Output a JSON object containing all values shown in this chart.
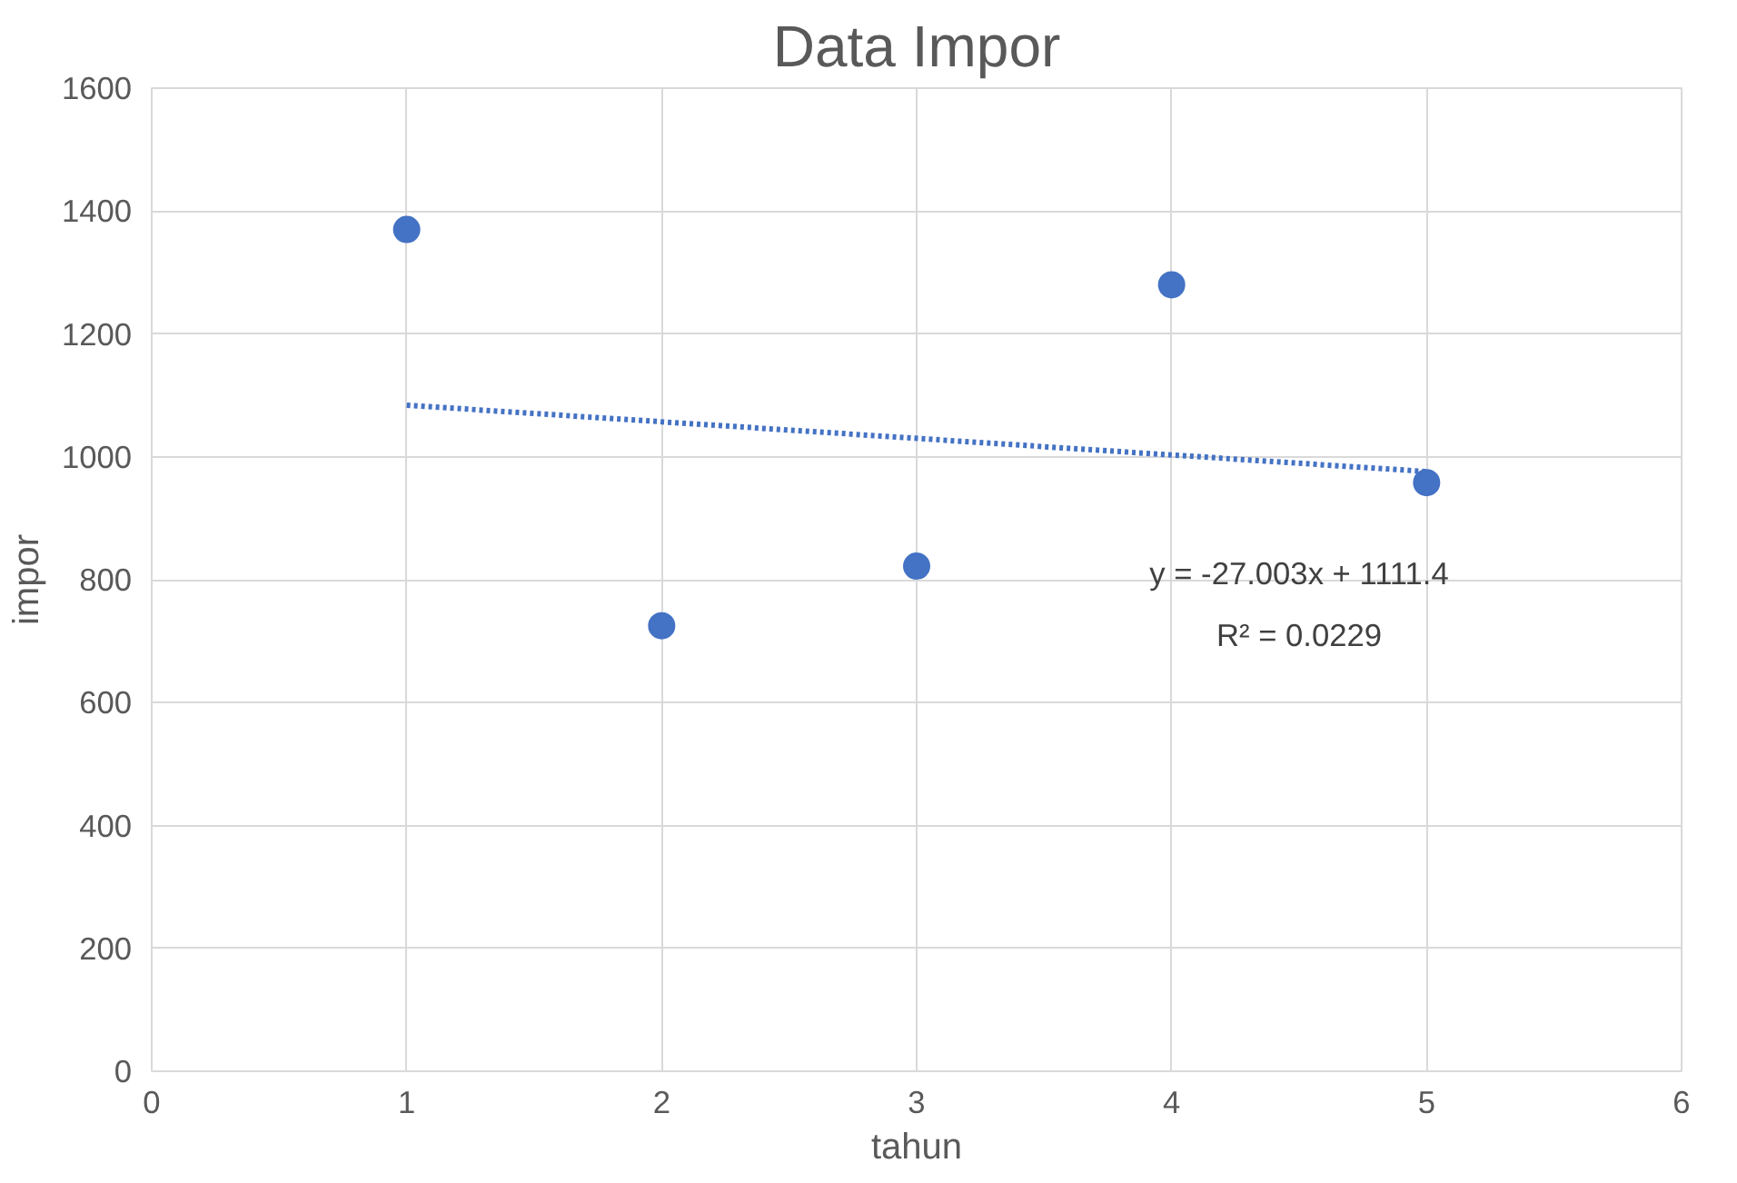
{
  "chart_data": {
    "type": "scatter",
    "title": "Data Impor",
    "xlabel": "tahun",
    "ylabel": "impor",
    "x": [
      1,
      2,
      3,
      4,
      5
    ],
    "series": [
      {
        "name": null,
        "color": "#4472c4",
        "values": [
          1370,
          725,
          822,
          1280,
          958
        ]
      },
      {
        "name": null,
        "type": "line",
        "color": "#4472c4",
        "x": [
          1,
          5
        ],
        "values": [
          1084,
          976
        ],
        "line_style": "dotted",
        "marker": "none"
      }
    ],
    "annotations": [
      "y = -27.003x + 1111.4",
      "R² = 0.0229"
    ],
    "xlim": [
      0,
      6
    ],
    "xticks": [
      0,
      1,
      2,
      3,
      4,
      5,
      6
    ],
    "ylim": [
      0,
      1600
    ],
    "yticks": [
      0,
      200,
      400,
      600,
      800,
      1000,
      1200,
      1400,
      1600
    ],
    "grid": true,
    "marker": "circle"
  }
}
